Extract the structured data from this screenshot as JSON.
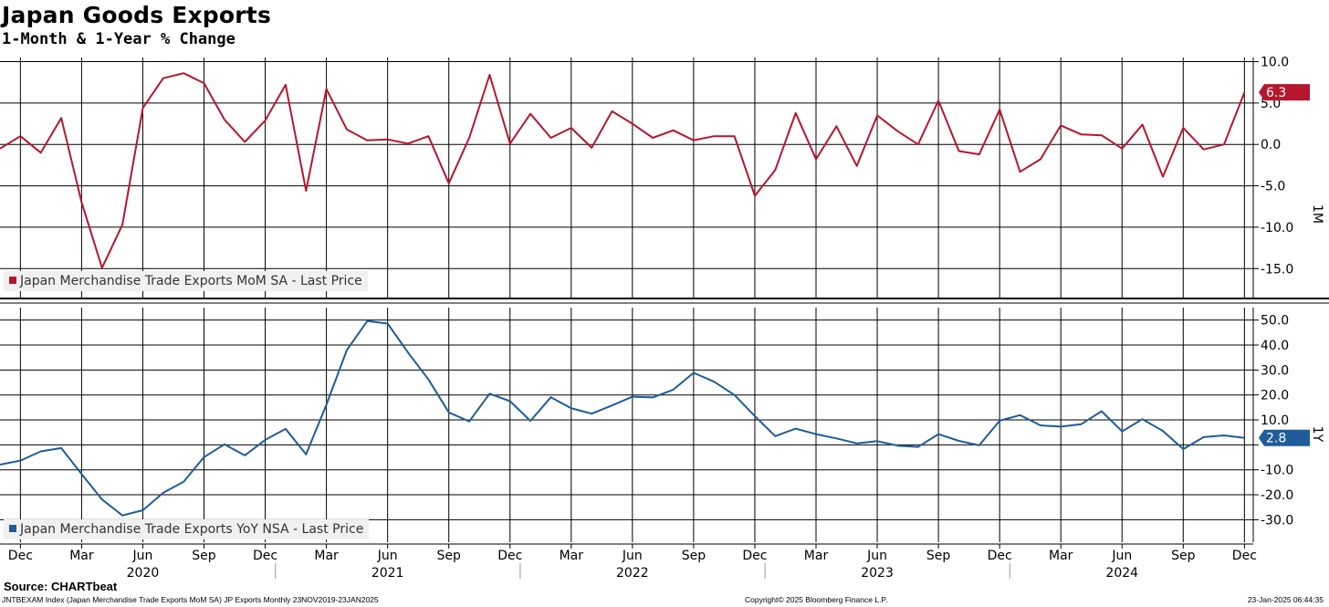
{
  "title": "Japan Goods Exports",
  "subtitle": "1-Month & 1-Year % Change",
  "source": "Source: CHARTbeat",
  "footer": {
    "left": "JNTBEXAM Index (Japan Merchandise Trade Exports MoM SA) JP Exports  Monthly 23NOV2019-23JAN2025",
    "center": "Copyright© 2025 Bloomberg Finance L.P.",
    "right": "23-Jan-2025 06:44:35"
  },
  "colors": {
    "mom": "#b5172e",
    "yoy": "#1f5c99",
    "grid": "#000000"
  },
  "chart_data": [
    {
      "type": "line",
      "panel": "top",
      "axis_label": "1M",
      "legend": "Japan Merchandise Trade Exports MoM SA - Last Price",
      "last_value_label": "6.3",
      "ylim": [
        -18.5,
        10.5
      ],
      "yticks": [
        10.0,
        5.0,
        0.0,
        -5.0,
        -10.0,
        -15.0
      ],
      "ytick_labels": [
        "10.0",
        "5.0",
        "0.0",
        "-5.0",
        "-10.0",
        "-15.0"
      ],
      "x": [
        "2019-11",
        "2019-12",
        "2020-01",
        "2020-02",
        "2020-03",
        "2020-04",
        "2020-05",
        "2020-06",
        "2020-07",
        "2020-08",
        "2020-09",
        "2020-10",
        "2020-11",
        "2020-12",
        "2021-01",
        "2021-02",
        "2021-03",
        "2021-04",
        "2021-05",
        "2021-06",
        "2021-07",
        "2021-08",
        "2021-09",
        "2021-10",
        "2021-11",
        "2021-12",
        "2022-01",
        "2022-02",
        "2022-03",
        "2022-04",
        "2022-05",
        "2022-06",
        "2022-07",
        "2022-08",
        "2022-09",
        "2022-10",
        "2022-11",
        "2022-12",
        "2023-01",
        "2023-02",
        "2023-03",
        "2023-04",
        "2023-05",
        "2023-06",
        "2023-07",
        "2023-08",
        "2023-09",
        "2023-10",
        "2023-11",
        "2023-12",
        "2024-01",
        "2024-02",
        "2024-03",
        "2024-04",
        "2024-05",
        "2024-06",
        "2024-07",
        "2024-08",
        "2024-09",
        "2024-10",
        "2024-11",
        "2024-12"
      ],
      "values": [
        -0.5,
        1.0,
        -1.0,
        3.2,
        -7.0,
        -14.9,
        -9.7,
        4.4,
        8.0,
        8.6,
        7.4,
        3.0,
        0.3,
        2.9,
        7.2,
        -5.6,
        6.7,
        1.8,
        0.5,
        0.6,
        0.1,
        1.0,
        -4.7,
        0.8,
        8.4,
        0.1,
        3.7,
        0.8,
        2.0,
        -0.4,
        4.0,
        2.5,
        0.8,
        1.7,
        0.5,
        1.0,
        1.0,
        -6.2,
        -3.1,
        3.8,
        -1.8,
        2.2,
        -2.6,
        3.5,
        1.6,
        0.0,
        5.3,
        -0.8,
        -1.2,
        4.2,
        -3.3,
        -1.8,
        2.3,
        1.2,
        1.1,
        -0.5,
        2.4,
        -3.9,
        2.0,
        -0.6,
        0.0,
        6.3
      ]
    },
    {
      "type": "line",
      "panel": "bottom",
      "axis_label": "1Y",
      "legend": "Japan Merchandise Trade Exports YoY NSA - Last Price",
      "last_value_label": "2.8",
      "ylim": [
        -39,
        55
      ],
      "yticks": [
        50.0,
        40.0,
        30.0,
        20.0,
        10.0,
        0.0,
        -10.0,
        -20.0,
        -30.0
      ],
      "ytick_labels": [
        "50.0",
        "40.0",
        "30.0",
        "20.0",
        "10.0",
        "",
        "-10.0",
        "-20.0",
        "-30.0"
      ],
      "x": [
        "2019-11",
        "2019-12",
        "2020-01",
        "2020-02",
        "2020-03",
        "2020-04",
        "2020-05",
        "2020-06",
        "2020-07",
        "2020-08",
        "2020-09",
        "2020-10",
        "2020-11",
        "2020-12",
        "2021-01",
        "2021-02",
        "2021-03",
        "2021-04",
        "2021-05",
        "2021-06",
        "2021-07",
        "2021-08",
        "2021-09",
        "2021-10",
        "2021-11",
        "2021-12",
        "2022-01",
        "2022-02",
        "2022-03",
        "2022-04",
        "2022-05",
        "2022-06",
        "2022-07",
        "2022-08",
        "2022-09",
        "2022-10",
        "2022-11",
        "2022-12",
        "2023-01",
        "2023-02",
        "2023-03",
        "2023-04",
        "2023-05",
        "2023-06",
        "2023-07",
        "2023-08",
        "2023-09",
        "2023-10",
        "2023-11",
        "2023-12",
        "2024-01",
        "2024-02",
        "2024-03",
        "2024-04",
        "2024-05",
        "2024-06",
        "2024-07",
        "2024-08",
        "2024-09",
        "2024-10",
        "2024-11",
        "2024-12"
      ],
      "values": [
        -7.9,
        -6.3,
        -2.6,
        -1.3,
        -11.7,
        -21.9,
        -28.3,
        -26.2,
        -19.2,
        -14.8,
        -4.9,
        0.2,
        -4.2,
        2.0,
        6.4,
        -3.8,
        16.1,
        38.0,
        49.6,
        48.6,
        37.0,
        26.2,
        13.0,
        9.4,
        20.5,
        17.5,
        9.6,
        19.1,
        14.7,
        12.5,
        15.8,
        19.3,
        19.0,
        22.1,
        28.9,
        25.3,
        20.0,
        11.5,
        3.5,
        6.5,
        4.3,
        2.6,
        0.6,
        1.5,
        -0.3,
        -0.8,
        4.3,
        1.6,
        -0.2,
        9.7,
        11.9,
        7.8,
        7.3,
        8.3,
        13.5,
        5.4,
        10.3,
        5.6,
        -1.7,
        3.1,
        3.8,
        2.8
      ]
    }
  ],
  "x_axis": {
    "month_labels": [
      "Dec",
      "Mar",
      "Jun",
      "Sep",
      "Dec",
      "Mar",
      "Jun",
      "Sep",
      "Dec",
      "Mar",
      "Jun",
      "Sep",
      "Dec",
      "Mar",
      "Jun",
      "Sep",
      "Dec",
      "Mar",
      "Jun",
      "Sep",
      "Dec"
    ],
    "month_label_dates": [
      "2019-12",
      "2020-03",
      "2020-06",
      "2020-09",
      "2020-12",
      "2021-03",
      "2021-06",
      "2021-09",
      "2021-12",
      "2022-03",
      "2022-06",
      "2022-09",
      "2022-12",
      "2023-03",
      "2023-06",
      "2023-09",
      "2023-12",
      "2024-03",
      "2024-06",
      "2024-09",
      "2024-12"
    ],
    "year_labels": [
      "2020",
      "2021",
      "2022",
      "2023",
      "2024"
    ],
    "year_label_dates": [
      "2020-06",
      "2021-06",
      "2022-06",
      "2023-06",
      "2024-06"
    ]
  }
}
